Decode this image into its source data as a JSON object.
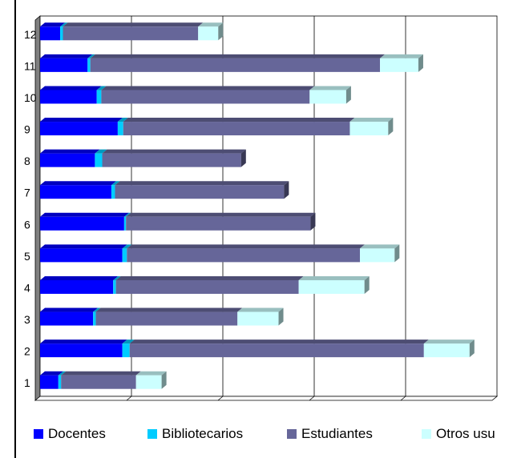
{
  "chart_data": {
    "type": "bar",
    "orientation": "horizontal",
    "stacked": true,
    "style": "3d",
    "categories": [
      "1",
      "2",
      "3",
      "4",
      "5",
      "6",
      "7",
      "8",
      "9",
      "10",
      "11",
      "12"
    ],
    "series": [
      {
        "name": "Docentes",
        "color": "#0000ff",
        "values": [
          20,
          90,
          58,
          80,
          90,
          92,
          78,
          60,
          85,
          62,
          52,
          22
        ]
      },
      {
        "name": "Bibliotecarios",
        "color": "#00ccff",
        "values": [
          3,
          8,
          3,
          3,
          5,
          2,
          4,
          8,
          6,
          5,
          3,
          3
        ]
      },
      {
        "name": "Estudiantes",
        "color": "#666699",
        "values": [
          82,
          322,
          155,
          200,
          255,
          202,
          185,
          152,
          248,
          228,
          317,
          148
        ]
      },
      {
        "name": "Otros usu",
        "color": "#ccffff",
        "values": [
          28,
          50,
          45,
          72,
          38,
          0,
          0,
          0,
          42,
          40,
          42,
          22
        ]
      }
    ],
    "xlim": [
      0,
      500
    ],
    "x_gridlines": [
      0,
      100,
      200,
      300,
      400,
      500
    ],
    "grid": true,
    "legend_position": "bottom"
  }
}
